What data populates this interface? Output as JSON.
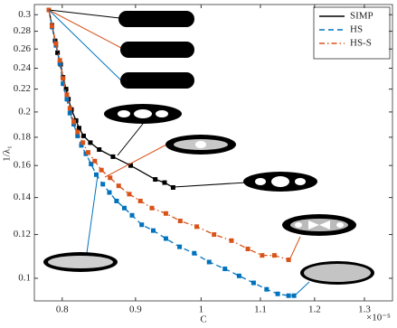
{
  "chart_data": {
    "type": "line",
    "xlabel": "C",
    "ylabel": "1/λ₁",
    "x_multiplier": "×10⁻⁵",
    "xscale": "log",
    "yscale": "log",
    "xlim": [
      0.765,
      1.36
    ],
    "ylim": [
      0.091,
      0.313
    ],
    "xticks": [
      0.8,
      0.9,
      1,
      1.1,
      1.2,
      1.3
    ],
    "yticks": [
      0.1,
      0.12,
      0.14,
      0.16,
      0.18,
      0.2,
      0.22,
      0.24,
      0.26,
      0.28,
      0.3
    ],
    "legend": "top-right",
    "series": [
      {
        "name": "SIMP",
        "color": "#000000",
        "dash": "solid",
        "x": [
          0.783,
          0.787,
          0.791,
          0.794,
          0.798,
          0.801,
          0.805,
          0.808,
          0.812,
          0.818,
          0.822,
          0.828,
          0.837,
          0.849,
          0.868,
          0.893,
          0.929,
          0.943,
          0.956
        ],
        "values": [
          0.306,
          0.287,
          0.269,
          0.256,
          0.244,
          0.231,
          0.22,
          0.211,
          0.202,
          0.193,
          0.187,
          0.181,
          0.176,
          0.171,
          0.166,
          0.16,
          0.151,
          0.149,
          0.146
        ]
      },
      {
        "name": "HS",
        "color": "#0072bd",
        "dash": "dashed",
        "x": [
          0.783,
          0.787,
          0.792,
          0.797,
          0.801,
          0.806,
          0.81,
          0.815,
          0.82,
          0.825,
          0.831,
          0.838,
          0.845,
          0.854,
          0.863,
          0.873,
          0.884,
          0.895,
          0.909,
          0.926,
          0.945,
          0.966,
          0.989,
          1.013,
          1.039,
          1.063,
          1.088,
          1.111,
          1.131,
          1.151,
          1.161
        ],
        "values": [
          0.306,
          0.285,
          0.264,
          0.245,
          0.225,
          0.211,
          0.199,
          0.19,
          0.181,
          0.174,
          0.168,
          0.161,
          0.154,
          0.148,
          0.143,
          0.138,
          0.134,
          0.13,
          0.125,
          0.122,
          0.118,
          0.114,
          0.111,
          0.107,
          0.104,
          0.101,
          0.0981,
          0.0955,
          0.0937,
          0.093,
          0.093
        ]
      },
      {
        "name": "HS-S",
        "color": "#d95319",
        "dash": "dashdot",
        "x": [
          0.783,
          0.787,
          0.792,
          0.797,
          0.801,
          0.806,
          0.81,
          0.815,
          0.82,
          0.827,
          0.834,
          0.843,
          0.852,
          0.864,
          0.876,
          0.891,
          0.907,
          0.924,
          0.945,
          0.967,
          0.993,
          1.021,
          1.05,
          1.078,
          1.103,
          1.125,
          1.151
        ],
        "values": [
          0.306,
          0.286,
          0.266,
          0.248,
          0.23,
          0.215,
          0.203,
          0.192,
          0.184,
          0.176,
          0.169,
          0.163,
          0.157,
          0.152,
          0.147,
          0.142,
          0.138,
          0.134,
          0.131,
          0.127,
          0.124,
          0.12,
          0.117,
          0.113,
          0.11,
          0.11,
          0.108
        ]
      }
    ]
  }
}
